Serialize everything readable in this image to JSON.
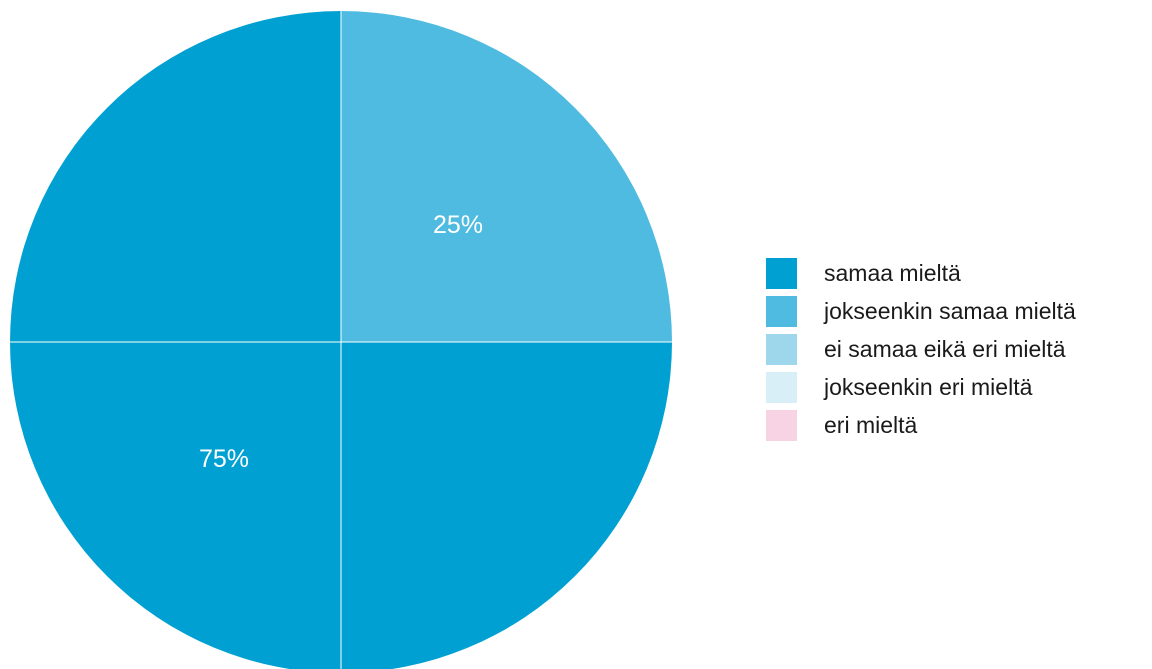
{
  "chart_data": {
    "type": "pie",
    "categories": [
      "samaa mieltä",
      "jokseenkin samaa mieltä",
      "ei samaa eikä eri mieltä",
      "jokseenkin eri mieltä",
      "eri mieltä"
    ],
    "values": [
      75,
      25,
      0,
      0,
      0
    ],
    "data_labels": [
      "75%",
      "25%",
      "",
      "",
      ""
    ],
    "colors": [
      "#00A0D2",
      "#4FBBE0",
      "#9ED7EC",
      "#D8EFF8",
      "#F8D3E3"
    ],
    "legend_position": "right"
  }
}
